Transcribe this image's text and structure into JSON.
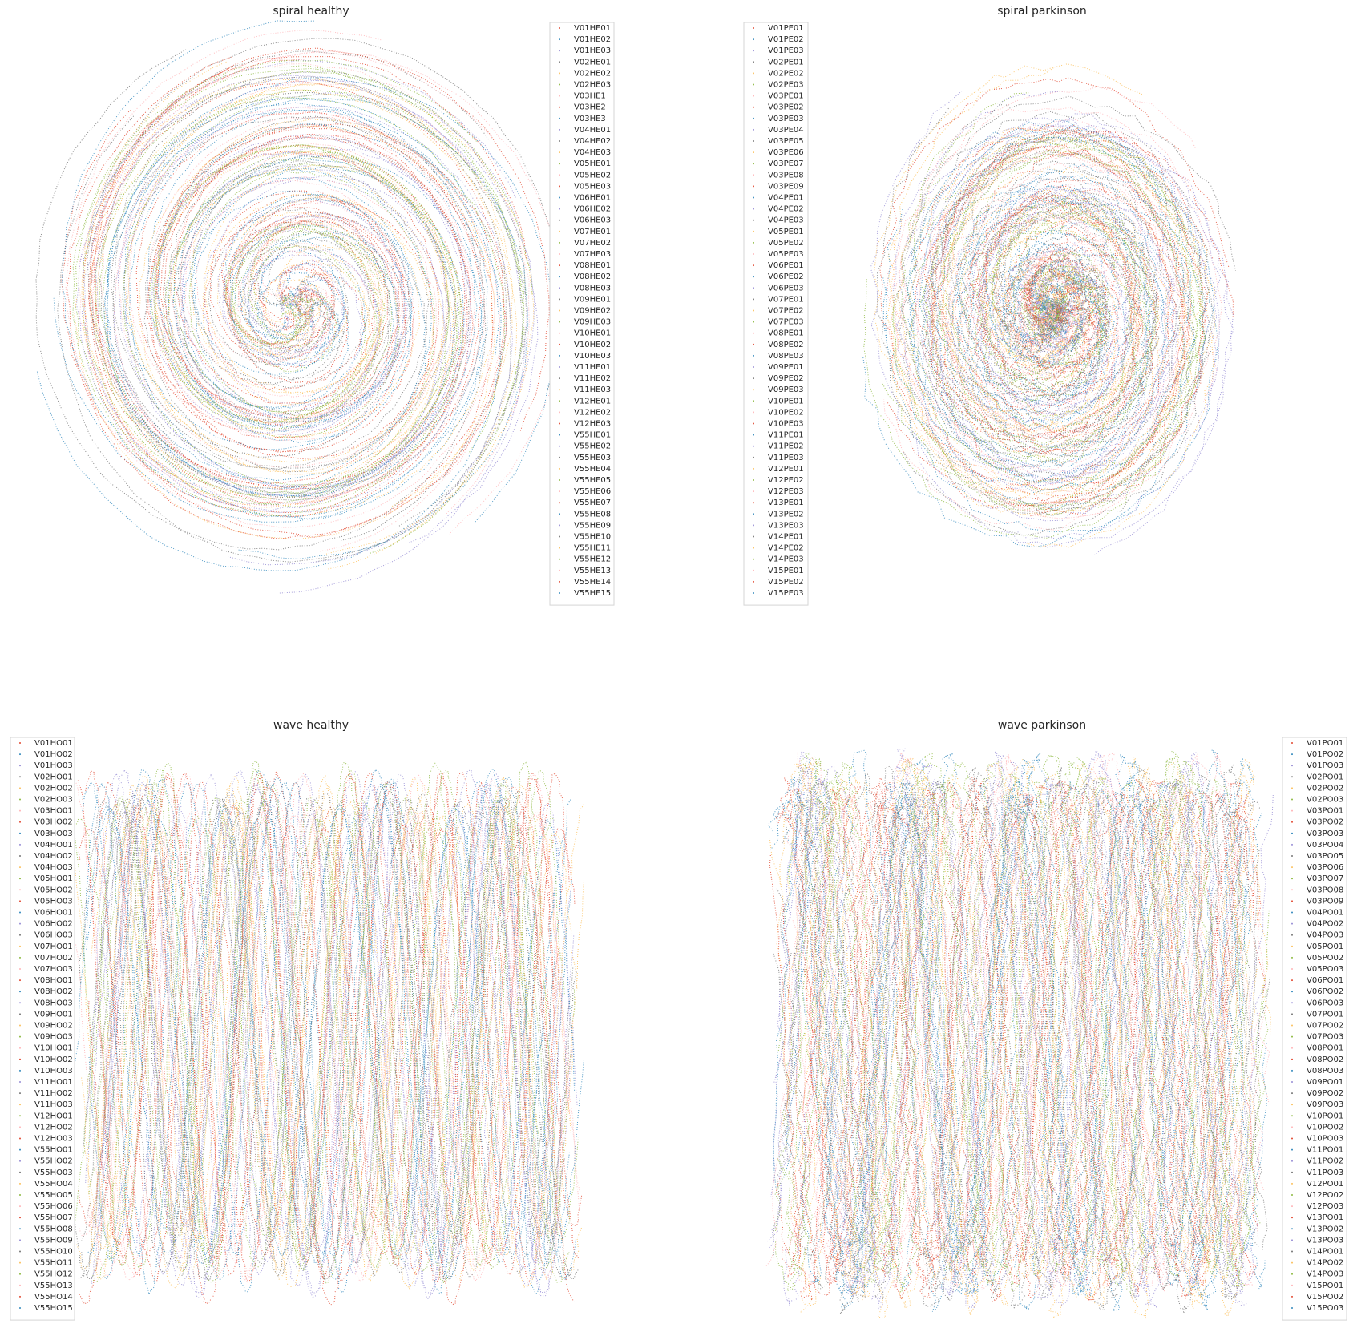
{
  "colors": [
    "#e24a33",
    "#348abd",
    "#988ed5",
    "#777777",
    "#fbc15e",
    "#8eba42",
    "#ffb5b8"
  ],
  "chart_data": [
    {
      "type": "scatter",
      "panel": "spiral-healthy",
      "title": "spiral healthy",
      "shape": "spiral",
      "grid": false,
      "axes_visible": false,
      "legend_placement": "right",
      "series": [
        "V01HE01",
        "V01HE02",
        "V01HE03",
        "V02HE01",
        "V02HE02",
        "V02HE03",
        "V03HE1",
        "V03HE2",
        "V03HE3",
        "V04HE01",
        "V04HE02",
        "V04HE03",
        "V05HE01",
        "V05HE02",
        "V05HE03",
        "V06HE01",
        "V06HE02",
        "V06HE03",
        "V07HE01",
        "V07HE02",
        "V07HE03",
        "V08HE01",
        "V08HE02",
        "V08HE03",
        "V09HE01",
        "V09HE02",
        "V09HE03",
        "V10HE01",
        "V10HE02",
        "V10HE03",
        "V11HE01",
        "V11HE02",
        "V11HE03",
        "V12HE01",
        "V12HE02",
        "V12HE03",
        "V55HE01",
        "V55HE02",
        "V55HE03",
        "V55HE04",
        "V55HE05",
        "V55HE06",
        "V55HE07",
        "V55HE08",
        "V55HE09",
        "V55HE10",
        "V55HE11",
        "V55HE12",
        "V55HE13",
        "V55HE14",
        "V55HE15"
      ]
    },
    {
      "type": "scatter",
      "panel": "spiral-parkinson",
      "title": "spiral parkinson",
      "shape": "spiral",
      "grid": false,
      "axes_visible": false,
      "legend_placement": "left",
      "series": [
        "V01PE01",
        "V01PE02",
        "V01PE03",
        "V02PE01",
        "V02PE02",
        "V02PE03",
        "V03PE01",
        "V03PE02",
        "V03PE03",
        "V03PE04",
        "V03PE05",
        "V03PE06",
        "V03PE07",
        "V03PE08",
        "V03PE09",
        "V04PE01",
        "V04PE02",
        "V04PE03",
        "V05PE01",
        "V05PE02",
        "V05PE03",
        "V06PE01",
        "V06PE02",
        "V06PE03",
        "V07PE01",
        "V07PE02",
        "V07PE03",
        "V08PE01",
        "V08PE02",
        "V08PE03",
        "V09PE01",
        "V09PE02",
        "V09PE03",
        "V10PE01",
        "V10PE02",
        "V10PE03",
        "V11PE01",
        "V11PE02",
        "V11PE03",
        "V12PE01",
        "V12PE02",
        "V12PE03",
        "V13PE01",
        "V13PE02",
        "V13PE03",
        "V14PE01",
        "V14PE02",
        "V14PE03",
        "V15PE01",
        "V15PE02",
        "V15PE03"
      ]
    },
    {
      "type": "scatter",
      "panel": "wave-healthy",
      "title": "wave healthy",
      "shape": "wave",
      "grid": false,
      "axes_visible": false,
      "legend_placement": "left",
      "series": [
        "V01HO01",
        "V01HO02",
        "V01HO03",
        "V02HO01",
        "V02HO02",
        "V02HO03",
        "V03HO01",
        "V03HO02",
        "V03HO03",
        "V04HO01",
        "V04HO02",
        "V04HO03",
        "V05HO01",
        "V05HO02",
        "V05HO03",
        "V06HO01",
        "V06HO02",
        "V06HO03",
        "V07HO01",
        "V07HO02",
        "V07HO03",
        "V08HO01",
        "V08HO02",
        "V08HO03",
        "V09HO01",
        "V09HO02",
        "V09HO03",
        "V10HO01",
        "V10HO02",
        "V10HO03",
        "V11HO01",
        "V11HO02",
        "V11HO03",
        "V12HO01",
        "V12HO02",
        "V12HO03",
        "V55HO01",
        "V55HO02",
        "V55HO03",
        "V55HO04",
        "V55HO05",
        "V55HO06",
        "V55HO07",
        "V55HO08",
        "V55HO09",
        "V55HO10",
        "V55HO11",
        "V55HO12",
        "V55HO13",
        "V55HO14",
        "V55HO15"
      ]
    },
    {
      "type": "scatter",
      "panel": "wave-parkinson",
      "title": "wave parkinson",
      "shape": "wave",
      "grid": false,
      "axes_visible": false,
      "legend_placement": "right",
      "series": [
        "V01PO01",
        "V01PO02",
        "V01PO03",
        "V02PO01",
        "V02PO02",
        "V02PO03",
        "V03PO01",
        "V03PO02",
        "V03PO03",
        "V03PO04",
        "V03PO05",
        "V03PO06",
        "V03PO07",
        "V03PO08",
        "V03PO09",
        "V04PO01",
        "V04PO02",
        "V04PO03",
        "V05PO01",
        "V05PO02",
        "V05PO03",
        "V06PO01",
        "V06PO02",
        "V06PO03",
        "V07PO01",
        "V07PO02",
        "V07PO03",
        "V08PO01",
        "V08PO02",
        "V08PO03",
        "V09PO01",
        "V09PO02",
        "V09PO03",
        "V10PO01",
        "V10PO02",
        "V10PO03",
        "V11PO01",
        "V11PO02",
        "V11PO03",
        "V12PO01",
        "V12PO02",
        "V12PO03",
        "V13PO01",
        "V13PO02",
        "V13PO03",
        "V14PO01",
        "V14PO02",
        "V14PO03",
        "V15PO01",
        "V15PO02",
        "V15PO03"
      ]
    }
  ]
}
